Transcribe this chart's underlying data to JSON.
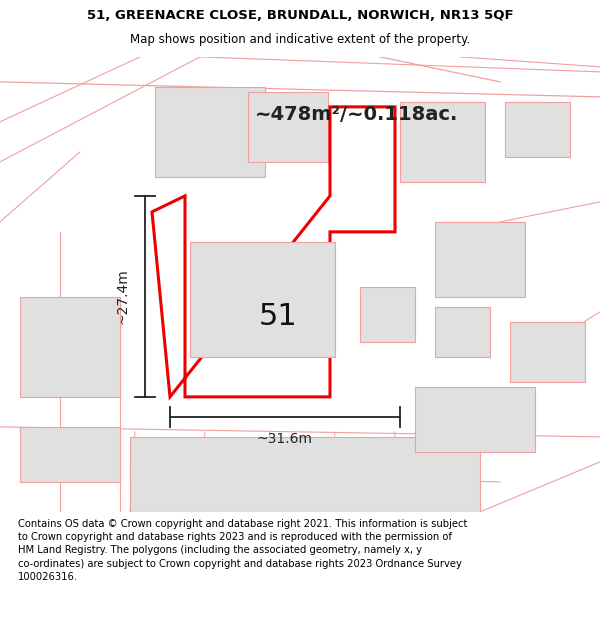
{
  "title_line1": "51, GREENACRE CLOSE, BRUNDALL, NORWICH, NR13 5QF",
  "title_line2": "Map shows position and indicative extent of the property.",
  "footer_text": "Contains OS data © Crown copyright and database right 2021. This information is subject to Crown copyright and database rights 2023 and is reproduced with the permission of HM Land Registry. The polygons (including the associated geometry, namely x, y co-ordinates) are subject to Crown copyright and database rights 2023 Ordnance Survey 100026316.",
  "area_text": "~478m²/~0.118ac.",
  "label_text": "51",
  "dim_width": "~31.6m",
  "dim_height": "~27.4m",
  "map_bg": "#ffffff",
  "plot_fill": "#ffffff",
  "plot_edge_color": "#ee0000",
  "neighbor_edge_color": "#f0a0a0",
  "neighbor_fill": "#e0e0e0",
  "ann_color": "#222222",
  "title_fg": "#000000",
  "footer_fg": "#000000"
}
